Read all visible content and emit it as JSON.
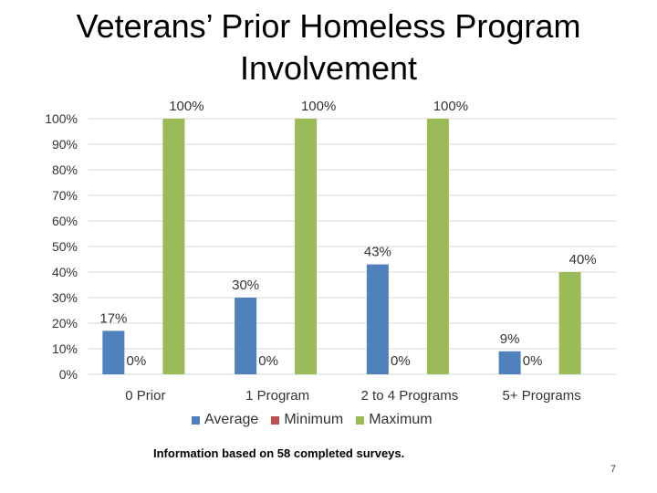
{
  "slide": {
    "title": "Veterans’ Prior Homeless Program Involvement",
    "footnote": "Information based on 58 completed surveys.",
    "page_number": "7"
  },
  "chart_data": {
    "type": "bar",
    "title": "",
    "xlabel": "",
    "ylabel": "",
    "categories": [
      "0 Prior",
      "1 Program",
      "2 to 4 Programs",
      "5+ Programs"
    ],
    "series": [
      {
        "name": "Average",
        "color": "#4F81BD",
        "values": [
          17,
          30,
          43,
          9
        ],
        "labels": [
          "17%",
          "30%",
          "43%",
          "9%"
        ]
      },
      {
        "name": "Minimum",
        "color": "#C0504D",
        "values": [
          0,
          0,
          0,
          0
        ],
        "labels": [
          "0%",
          "0%",
          "0%",
          "0%"
        ]
      },
      {
        "name": "Maximum",
        "color": "#9BBB59",
        "values": [
          100,
          100,
          100,
          40
        ],
        "labels": [
          "100%",
          "100%",
          "100%",
          "40%"
        ]
      }
    ],
    "ylim": [
      0,
      100
    ],
    "yticks": [
      "0%",
      "10%",
      "20%",
      "30%",
      "40%",
      "50%",
      "60%",
      "70%",
      "80%",
      "90%",
      "100%"
    ],
    "grid": true,
    "legend_position": "bottom"
  }
}
